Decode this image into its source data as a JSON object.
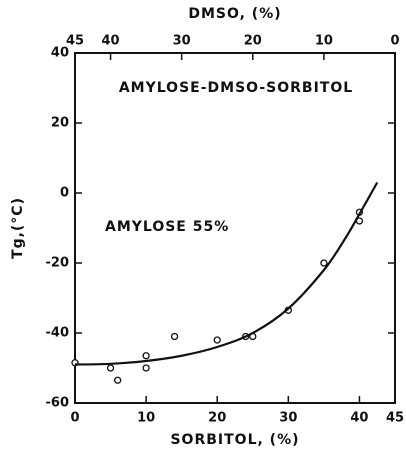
{
  "chart_data": {
    "type": "scatter",
    "x2label": "DMSO, (%)",
    "xlabel": "SORBITOL, (%)",
    "ylabel": "Tg,(°C)",
    "annotations": [
      "AMYLOSE-DMSO-SORBITOL",
      "AMYLOSE 55%"
    ],
    "xlim": [
      0,
      45
    ],
    "xticks": [
      0,
      10,
      20,
      30,
      40,
      45
    ],
    "x2lim": [
      45,
      0
    ],
    "x2ticks": [
      45,
      40,
      30,
      20,
      10,
      0
    ],
    "ylim": [
      -60,
      40
    ],
    "yticks": [
      40,
      20,
      0,
      -20,
      -40,
      -60
    ],
    "grid": false,
    "series": [
      {
        "mark": "circle",
        "color": "#111",
        "x": [
          0,
          5,
          6,
          10,
          10,
          14,
          20,
          24,
          25,
          30,
          35,
          40,
          40
        ],
        "values": [
          -48.5,
          -50,
          -53.5,
          -46.5,
          -50,
          -41,
          -42,
          -41,
          -41,
          -33.5,
          -20,
          -8,
          -5.5
        ]
      },
      {
        "mark": "line",
        "color": "#111",
        "x": [
          0,
          5,
          10,
          15,
          20,
          25,
          30,
          35,
          38,
          40,
          42.5
        ],
        "values": [
          -49,
          -48.8,
          -48,
          -46.5,
          -44,
          -40,
          -33,
          -22,
          -13,
          -6,
          3
        ]
      }
    ]
  }
}
